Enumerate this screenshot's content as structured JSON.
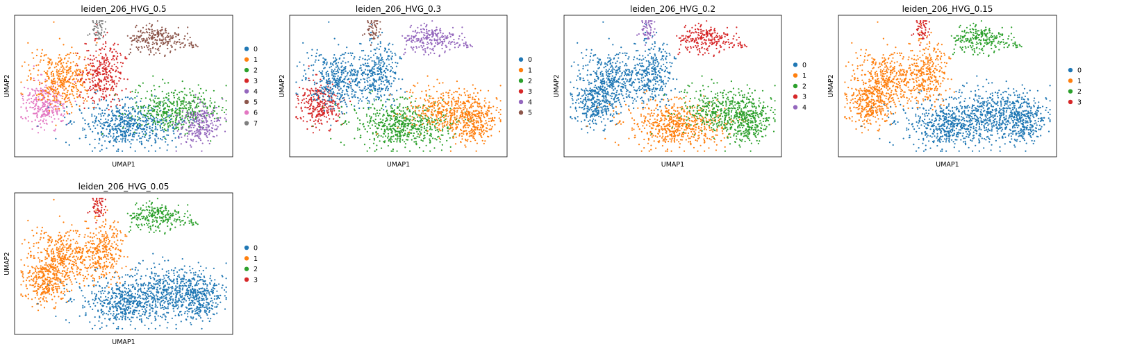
{
  "chart_data": [
    {
      "type": "scatter",
      "title": "leiden_206_HVG_0.5",
      "xlabel": "UMAP1",
      "ylabel": "UMAP2",
      "grid": false,
      "legend_position": "right",
      "legend": [
        "0",
        "1",
        "2",
        "3",
        "4",
        "5",
        "6",
        "7"
      ],
      "colors": [
        "#1f77b4",
        "#ff7f0e",
        "#2ca02c",
        "#d62728",
        "#9467bd",
        "#8c564b",
        "#e377c2",
        "#7f7f7f"
      ]
    },
    {
      "type": "scatter",
      "title": "leiden_206_HVG_0.3",
      "xlabel": "UMAP1",
      "ylabel": "UMAP2",
      "grid": false,
      "legend_position": "right",
      "legend": [
        "0",
        "1",
        "2",
        "3",
        "4",
        "5"
      ],
      "colors": [
        "#1f77b4",
        "#ff7f0e",
        "#2ca02c",
        "#d62728",
        "#9467bd",
        "#8c564b"
      ]
    },
    {
      "type": "scatter",
      "title": "leiden_206_HVG_0.2",
      "xlabel": "UMAP1",
      "ylabel": "UMAP2",
      "grid": false,
      "legend_position": "right",
      "legend": [
        "0",
        "1",
        "2",
        "3",
        "4"
      ],
      "colors": [
        "#1f77b4",
        "#ff7f0e",
        "#2ca02c",
        "#d62728",
        "#9467bd"
      ]
    },
    {
      "type": "scatter",
      "title": "leiden_206_HVG_0.15",
      "xlabel": "UMAP1",
      "ylabel": "UMAP2",
      "grid": false,
      "legend_position": "right",
      "legend": [
        "0",
        "1",
        "2",
        "3"
      ],
      "colors": [
        "#1f77b4",
        "#ff7f0e",
        "#2ca02c",
        "#d62728"
      ]
    },
    {
      "type": "scatter",
      "title": "leiden_206_HVG_0.05",
      "xlabel": "UMAP1",
      "ylabel": "UMAP2",
      "grid": false,
      "legend_position": "right",
      "legend": [
        "0",
        "1",
        "2",
        "3"
      ],
      "colors": [
        "#1f77b4",
        "#ff7f0e",
        "#2ca02c",
        "#d62728"
      ]
    }
  ]
}
